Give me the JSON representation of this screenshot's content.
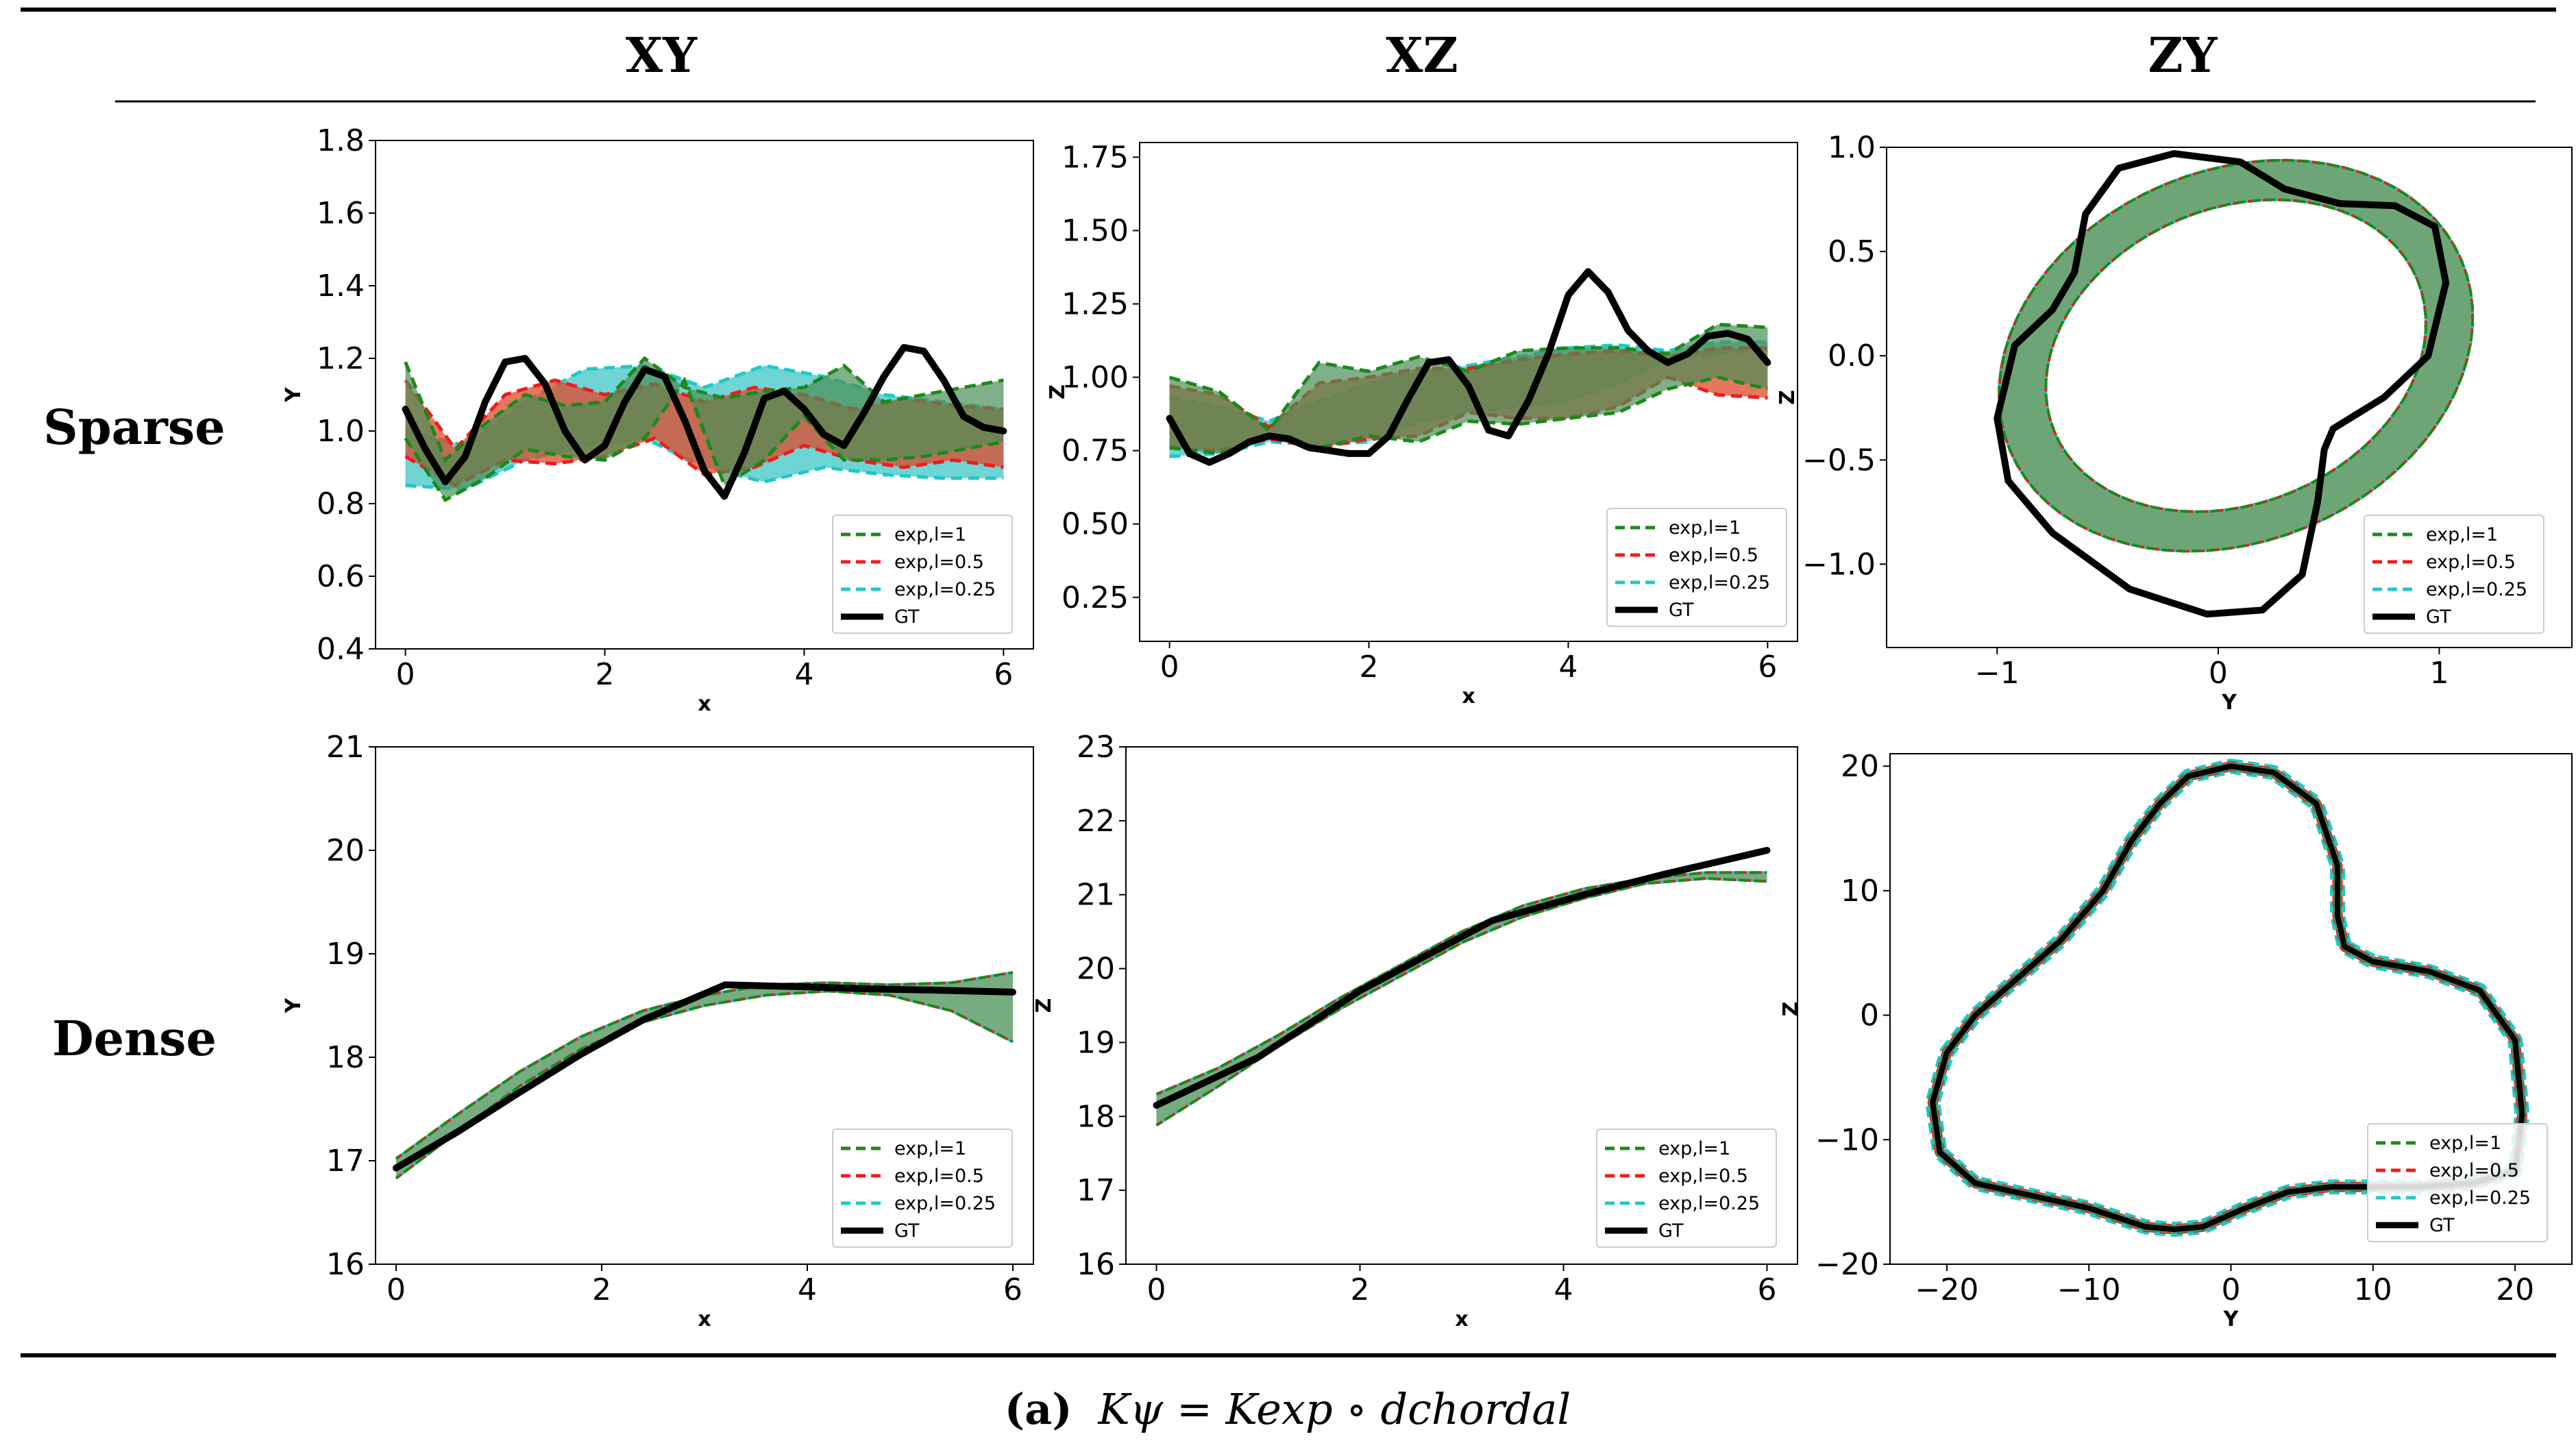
{
  "columns": [
    "XY",
    "XZ",
    "ZY"
  ],
  "rows": [
    "Sparse",
    "Dense"
  ],
  "caption": {
    "label": "(a)",
    "formula": "Kψ = Kexp ∘ dchordal"
  },
  "colors": {
    "exp_l1": "#1a8a1a",
    "exp_l05": "#ee1c1c",
    "exp_l025": "#1fc8c8",
    "gt": "#000000",
    "band_green": "#4a8f55",
    "band_red": "#e0482a",
    "band_cyan": "#3ec6c6"
  },
  "legend": [
    "exp,l=1",
    "exp,l=0.5",
    "exp,l=0.25",
    "GT"
  ],
  "chart_data": [
    {
      "id": "sparse-xy",
      "type": "line",
      "xlabel": "x",
      "ylabel": "Y",
      "xlim": [
        -0.3,
        6.3
      ],
      "ylim": [
        0.4,
        1.8
      ],
      "xticks": [
        0,
        2,
        4,
        6
      ],
      "xtick_labels": [
        "0",
        "2",
        "4",
        "6"
      ],
      "yticks": [
        0.4,
        0.6,
        0.8,
        1.0,
        1.2,
        1.4,
        1.6,
        1.8
      ],
      "ytick_labels": [
        "0.4",
        "0.6",
        "0.8",
        "1.0",
        "1.2",
        "1.4",
        "1.6",
        "1.8"
      ],
      "series": [
        {
          "name": "GT",
          "x": [
            0,
            0.2,
            0.4,
            0.6,
            0.8,
            1.0,
            1.2,
            1.4,
            1.6,
            1.8,
            2.0,
            2.2,
            2.4,
            2.6,
            2.8,
            3.0,
            3.2,
            3.4,
            3.6,
            3.8,
            4.0,
            4.2,
            4.4,
            4.6,
            4.8,
            5.0,
            5.2,
            5.4,
            5.6,
            5.8,
            6.0
          ],
          "y": [
            1.06,
            0.95,
            0.86,
            0.93,
            1.08,
            1.19,
            1.2,
            1.13,
            1.0,
            0.92,
            0.96,
            1.08,
            1.17,
            1.15,
            1.03,
            0.89,
            0.82,
            0.94,
            1.09,
            1.11,
            1.06,
            0.99,
            0.96,
            1.05,
            1.15,
            1.23,
            1.22,
            1.14,
            1.04,
            1.01,
            1.0
          ]
        },
        {
          "name": "exp,l=1 upper",
          "x": [
            0,
            0.4,
            0.8,
            1.2,
            1.6,
            2.0,
            2.4,
            2.8,
            3.2,
            3.6,
            4.0,
            4.4,
            4.8,
            5.2,
            5.6,
            6.0
          ],
          "y": [
            1.19,
            0.92,
            1.02,
            1.1,
            1.07,
            1.08,
            1.2,
            1.12,
            1.09,
            1.11,
            1.12,
            1.18,
            1.08,
            1.1,
            1.12,
            1.14
          ]
        },
        {
          "name": "exp,l=1 lower",
          "x": [
            0,
            0.4,
            0.8,
            1.2,
            1.6,
            2.0,
            2.4,
            2.8,
            3.2,
            3.6,
            4.0,
            4.4,
            4.8,
            5.2,
            5.6,
            6.0
          ],
          "y": [
            0.98,
            0.81,
            0.87,
            0.95,
            0.93,
            0.92,
            0.98,
            1.14,
            0.85,
            0.92,
            1.04,
            0.92,
            0.92,
            0.93,
            0.95,
            0.97
          ]
        },
        {
          "name": "exp,l=0.5 upper",
          "x": [
            0,
            0.5,
            1.0,
            1.5,
            2.0,
            2.5,
            3.0,
            3.5,
            4.0,
            4.5,
            5.0,
            5.5,
            6.0
          ],
          "y": [
            1.14,
            0.95,
            1.1,
            1.14,
            1.1,
            1.13,
            1.08,
            1.12,
            1.1,
            1.06,
            1.09,
            1.07,
            1.06
          ]
        },
        {
          "name": "exp,l=0.5 lower",
          "x": [
            0,
            0.5,
            1.0,
            1.5,
            2.0,
            2.5,
            3.0,
            3.5,
            4.0,
            4.5,
            5.0,
            5.5,
            6.0
          ],
          "y": [
            0.93,
            0.85,
            0.92,
            0.91,
            0.93,
            0.98,
            0.88,
            0.9,
            0.96,
            0.92,
            0.9,
            0.92,
            0.9
          ]
        },
        {
          "name": "exp,l=0.25 upper",
          "x": [
            0,
            0.6,
            1.2,
            1.8,
            2.4,
            3.0,
            3.6,
            4.2,
            4.8,
            5.4,
            6.0
          ],
          "y": [
            1.0,
            0.96,
            1.08,
            1.17,
            1.18,
            1.12,
            1.18,
            1.15,
            1.1,
            1.08,
            1.06
          ]
        },
        {
          "name": "exp,l=0.25 lower",
          "x": [
            0,
            0.6,
            1.2,
            1.8,
            2.4,
            3.0,
            3.6,
            4.2,
            4.8,
            5.4,
            6.0
          ],
          "y": [
            0.85,
            0.84,
            0.92,
            0.96,
            0.98,
            0.9,
            0.86,
            0.9,
            0.88,
            0.87,
            0.87
          ]
        }
      ]
    },
    {
      "id": "sparse-xz",
      "type": "line",
      "xlabel": "x",
      "ylabel": "Z",
      "xlim": [
        -0.3,
        6.3
      ],
      "ylim": [
        0.1,
        1.8
      ],
      "xticks": [
        0,
        2,
        4,
        6
      ],
      "xtick_labels": [
        "0",
        "2",
        "4",
        "6"
      ],
      "yticks": [
        0.25,
        0.5,
        0.75,
        1.0,
        1.25,
        1.5,
        1.75
      ],
      "ytick_labels": [
        "0.25",
        "0.50",
        "0.75",
        "1.00",
        "1.25",
        "1.50",
        "1.75"
      ],
      "series": [
        {
          "name": "GT",
          "x": [
            0,
            0.2,
            0.4,
            0.6,
            0.8,
            1.0,
            1.2,
            1.4,
            1.6,
            1.8,
            2.0,
            2.2,
            2.4,
            2.6,
            2.8,
            3.0,
            3.2,
            3.4,
            3.6,
            3.8,
            4.0,
            4.2,
            4.4,
            4.6,
            4.8,
            5.0,
            5.2,
            5.4,
            5.6,
            5.8,
            6.0
          ],
          "y": [
            0.86,
            0.74,
            0.71,
            0.74,
            0.78,
            0.8,
            0.79,
            0.76,
            0.75,
            0.74,
            0.74,
            0.8,
            0.93,
            1.05,
            1.06,
            0.97,
            0.82,
            0.8,
            0.92,
            1.08,
            1.28,
            1.36,
            1.29,
            1.16,
            1.09,
            1.05,
            1.08,
            1.14,
            1.15,
            1.13,
            1.05
          ]
        },
        {
          "name": "exp,l=1 upper",
          "x": [
            0,
            0.5,
            1.0,
            1.5,
            2.0,
            2.5,
            3.0,
            3.5,
            4.0,
            4.5,
            5.0,
            5.5,
            6.0
          ],
          "y": [
            1.0,
            0.95,
            0.82,
            1.05,
            1.02,
            1.07,
            1.02,
            1.09,
            1.1,
            1.1,
            1.08,
            1.18,
            1.17
          ]
        },
        {
          "name": "exp,l=1 lower",
          "x": [
            0,
            0.5,
            1.0,
            1.5,
            2.0,
            2.5,
            3.0,
            3.5,
            4.0,
            4.5,
            5.0,
            5.5,
            6.0
          ],
          "y": [
            0.76,
            0.74,
            0.8,
            0.76,
            0.8,
            0.78,
            0.85,
            0.84,
            0.86,
            0.88,
            0.96,
            1.0,
            0.96
          ]
        },
        {
          "name": "exp,l=0.5 upper",
          "x": [
            0,
            0.5,
            1.0,
            1.5,
            2.0,
            2.5,
            3.0,
            3.5,
            4.0,
            4.5,
            5.0,
            5.5,
            6.0
          ],
          "y": [
            0.97,
            0.94,
            0.83,
            0.98,
            1.0,
            1.03,
            1.03,
            1.06,
            1.08,
            1.09,
            1.07,
            1.1,
            1.1
          ]
        },
        {
          "name": "exp,l=0.5 lower",
          "x": [
            0,
            0.5,
            1.0,
            1.5,
            2.0,
            2.5,
            3.0,
            3.5,
            4.0,
            4.5,
            5.0,
            5.5,
            6.0
          ],
          "y": [
            0.76,
            0.75,
            0.79,
            0.76,
            0.79,
            0.8,
            0.88,
            0.86,
            0.86,
            0.9,
            1.0,
            0.94,
            0.93
          ]
        },
        {
          "name": "exp,l=0.25 upper",
          "x": [
            0,
            0.5,
            1.0,
            1.5,
            2.0,
            2.5,
            3.0,
            3.5,
            4.0,
            4.5,
            5.0,
            5.5,
            6.0
          ],
          "y": [
            0.93,
            0.9,
            0.85,
            0.92,
            0.98,
            1.02,
            1.04,
            1.07,
            1.1,
            1.11,
            1.09,
            1.12,
            1.12
          ]
        },
        {
          "name": "exp,l=0.25 lower",
          "x": [
            0,
            0.5,
            1.0,
            1.5,
            2.0,
            2.5,
            3.0,
            3.5,
            4.0,
            4.5,
            5.0,
            5.5,
            6.0
          ],
          "y": [
            0.73,
            0.74,
            0.78,
            0.77,
            0.78,
            0.85,
            0.88,
            0.9,
            0.92,
            0.98,
            1.06,
            1.08,
            1.1
          ]
        }
      ]
    },
    {
      "id": "sparse-zy",
      "type": "line",
      "xlabel": "Y",
      "ylabel": "Z",
      "xlim": [
        -1.5,
        1.6
      ],
      "ylim": [
        -1.4,
        1.0
      ],
      "xticks": [
        -1,
        0,
        1
      ],
      "xtick_labels": [
        "−1",
        "0",
        "1"
      ],
      "yticks": [
        -1.0,
        -0.5,
        0.0,
        0.5,
        1.0
      ],
      "ytick_labels": [
        "−1.0",
        "−0.5",
        "0.0",
        "0.5",
        "1.0"
      ],
      "ellipse": {
        "cx": 0.08,
        "cy": 0.0,
        "rx_outer": 1.12,
        "ry_outer": 0.88,
        "rx_inner": 0.9,
        "ry_inner": 0.7,
        "rotation_deg": 28
      },
      "series": [
        {
          "name": "GT",
          "x": [
            -0.2,
            0.1,
            0.3,
            0.55,
            0.8,
            0.98,
            1.03,
            0.95,
            0.75,
            0.52,
            0.48,
            0.45,
            0.38,
            0.2,
            -0.05,
            -0.4,
            -0.75,
            -0.95,
            -1.0,
            -0.92,
            -0.75,
            -0.65,
            -0.6,
            -0.45,
            -0.2
          ],
          "y": [
            0.97,
            0.93,
            0.8,
            0.73,
            0.72,
            0.62,
            0.35,
            0.0,
            -0.2,
            -0.35,
            -0.45,
            -0.7,
            -1.05,
            -1.22,
            -1.24,
            -1.12,
            -0.85,
            -0.6,
            -0.3,
            0.05,
            0.22,
            0.4,
            0.68,
            0.9,
            0.97
          ]
        }
      ]
    },
    {
      "id": "dense-xy",
      "type": "line",
      "xlabel": "x",
      "ylabel": "Y",
      "xlim": [
        -0.2,
        6.2
      ],
      "ylim": [
        16,
        21
      ],
      "xticks": [
        0,
        2,
        4,
        6
      ],
      "xtick_labels": [
        "0",
        "2",
        "4",
        "6"
      ],
      "yticks": [
        16,
        17,
        18,
        19,
        20,
        21
      ],
      "ytick_labels": [
        "16",
        "17",
        "18",
        "19",
        "20",
        "21"
      ],
      "series": [
        {
          "name": "GT",
          "x": [
            0,
            0.6,
            1.2,
            1.8,
            2.4,
            3.2,
            4.0,
            4.6,
            5.2,
            6.0
          ],
          "y": [
            16.93,
            17.28,
            17.66,
            18.03,
            18.36,
            18.7,
            18.68,
            18.66,
            18.65,
            18.63
          ]
        },
        {
          "name": "band upper",
          "x": [
            0,
            0.6,
            1.2,
            1.8,
            2.4,
            3.0,
            3.6,
            4.2,
            4.8,
            5.4,
            6.0
          ],
          "y": [
            17.02,
            17.45,
            17.86,
            18.2,
            18.45,
            18.6,
            18.7,
            18.72,
            18.7,
            18.72,
            18.82
          ]
        },
        {
          "name": "band lower",
          "x": [
            0,
            0.6,
            1.2,
            1.8,
            2.4,
            3.0,
            3.6,
            4.2,
            4.8,
            5.4,
            6.0
          ],
          "y": [
            16.83,
            17.28,
            17.72,
            18.08,
            18.34,
            18.5,
            18.6,
            18.64,
            18.6,
            18.45,
            18.15
          ]
        }
      ]
    },
    {
      "id": "dense-xz",
      "type": "line",
      "xlabel": "x",
      "ylabel": "Z",
      "xlim": [
        -0.3,
        6.3
      ],
      "ylim": [
        16,
        23
      ],
      "xticks": [
        0,
        2,
        4,
        6
      ],
      "xtick_labels": [
        "0",
        "2",
        "4",
        "6"
      ],
      "yticks": [
        16,
        17,
        18,
        19,
        20,
        21,
        22,
        23
      ],
      "ytick_labels": [
        "16",
        "17",
        "18",
        "19",
        "20",
        "21",
        "22",
        "23"
      ],
      "series": [
        {
          "name": "GT",
          "x": [
            0,
            1.0,
            2.0,
            3.3,
            4.2,
            5.0,
            6.0
          ],
          "y": [
            18.15,
            18.8,
            19.7,
            20.65,
            21.0,
            21.28,
            21.6
          ]
        },
        {
          "name": "band upper",
          "x": [
            0,
            0.6,
            1.2,
            1.8,
            2.4,
            3.0,
            3.6,
            4.2,
            4.8,
            5.4,
            6.0
          ],
          "y": [
            18.3,
            18.65,
            19.1,
            19.6,
            20.05,
            20.5,
            20.85,
            21.08,
            21.22,
            21.3,
            21.3
          ]
        },
        {
          "name": "band lower",
          "x": [
            0,
            0.6,
            1.2,
            1.8,
            2.4,
            3.0,
            3.6,
            4.2,
            4.8,
            5.4,
            6.0
          ],
          "y": [
            17.88,
            18.4,
            18.95,
            19.45,
            19.9,
            20.35,
            20.7,
            20.95,
            21.15,
            21.22,
            21.18
          ]
        }
      ]
    },
    {
      "id": "dense-zy",
      "type": "line",
      "xlabel": "Y",
      "ylabel": "Z",
      "xlim": [
        -24,
        24
      ],
      "ylim": [
        -20,
        21
      ],
      "xticks": [
        -20,
        -10,
        0,
        10,
        20
      ],
      "xtick_labels": [
        "−20",
        "−10",
        "0",
        "10",
        "20"
      ],
      "yticks": [
        -20,
        -10,
        0,
        10,
        20
      ],
      "ytick_labels": [
        "−20",
        "−10",
        "0",
        "10",
        "20"
      ],
      "series": [
        {
          "name": "GT",
          "x": [
            0,
            3,
            6,
            7.5,
            7.5,
            8,
            10,
            14,
            17.5,
            20,
            20.5,
            20,
            17,
            13,
            10,
            7,
            4,
            1,
            -2,
            -4,
            -6,
            -10,
            -14,
            -18,
            -20.5,
            -21,
            -20,
            -18,
            -15,
            -12,
            -9,
            -7,
            -5,
            -3,
            0
          ],
          "y": [
            20,
            19.5,
            17,
            12,
            8,
            5.5,
            4.3,
            3.5,
            2,
            -2,
            -8,
            -12.5,
            -13.5,
            -13.8,
            -13.8,
            -13.8,
            -14.2,
            -15.5,
            -17,
            -17.2,
            -17,
            -15.5,
            -14.5,
            -13.5,
            -11,
            -7,
            -3,
            0,
            3,
            6,
            10,
            14,
            17,
            19.2,
            20
          ]
        }
      ]
    }
  ]
}
